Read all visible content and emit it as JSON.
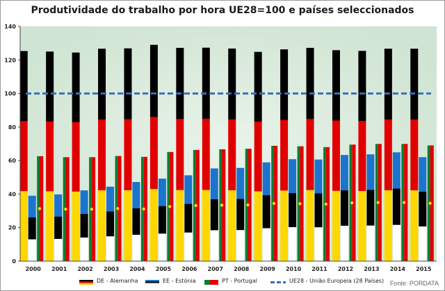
{
  "chart_data": {
    "type": "bar",
    "title": "Produtividade do trabalho por hora UE28=100 e países seleccionados",
    "categories": [
      "2000",
      "2001",
      "2002",
      "2003",
      "2004",
      "2005",
      "2006",
      "2007",
      "2008",
      "2009",
      "2010",
      "2011",
      "2012",
      "2013",
      "2014",
      "2015"
    ],
    "series": [
      {
        "name": "DE - Alemanha",
        "values": [
          125.3,
          125.0,
          124.4,
          126.7,
          126.9,
          129.0,
          127.2,
          127.3,
          126.8,
          124.8,
          126.3,
          127.2,
          125.8,
          125.4,
          126.7,
          126.7
        ],
        "flag": [
          "#000000",
          "#e00000",
          "#ffd700"
        ]
      },
      {
        "name": "EE - Estónia",
        "values": [
          39.0,
          39.8,
          42.2,
          44.4,
          47.2,
          49.2,
          51.2,
          55.3,
          55.6,
          58.9,
          60.8,
          60.6,
          63.3,
          63.7,
          64.9,
          62.0
        ],
        "flag": [
          "#1c74cd",
          "#000000",
          "#ffffff"
        ]
      },
      {
        "name": "PT - Portugal",
        "values": [
          62.6,
          62.0,
          62.0,
          62.7,
          62.2,
          65.1,
          66.3,
          66.7,
          67.0,
          68.8,
          68.5,
          68.0,
          69.5,
          69.9,
          69.9,
          69.0
        ],
        "flag": [
          "#0b7d32",
          "#e00000"
        ]
      },
      {
        "name": "UE28 - União Europeia (28 Países)",
        "values": [
          100,
          100,
          100,
          100,
          100,
          100,
          100,
          100,
          100,
          100,
          100,
          100,
          100,
          100,
          100,
          100
        ],
        "color": "#3a6fb4"
      }
    ],
    "ylim": [
      0,
      140
    ],
    "yticks": [
      "0",
      "20",
      "40",
      "60",
      "80",
      "100",
      "120",
      "140"
    ],
    "grid": false,
    "legend_position": "bottom"
  },
  "source": "Fonte: PORDATA"
}
